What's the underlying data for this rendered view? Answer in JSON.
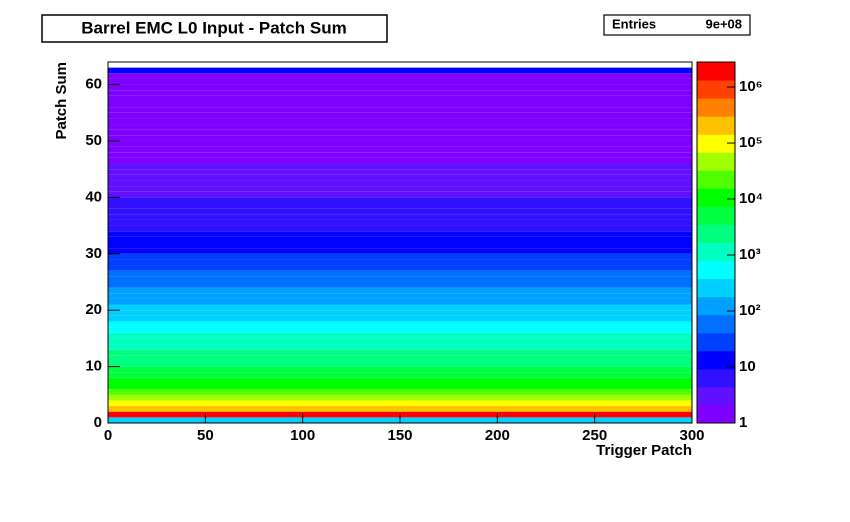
{
  "chart_data": {
    "type": "heatmap",
    "title": "Barrel EMC L0 Input - Patch Sum",
    "xlabel": "Trigger Patch",
    "ylabel": "Patch Sum",
    "stats": {
      "label": "Entries",
      "value": "9e+08"
    },
    "xlim": [
      0,
      300
    ],
    "xticks": [
      0,
      50,
      100,
      150,
      200,
      250,
      300
    ],
    "ylim": [
      0,
      64
    ],
    "yticks": [
      0,
      10,
      20,
      30,
      40,
      50,
      60
    ],
    "ybins": [
      0,
      1,
      2,
      3,
      4,
      5,
      6,
      7,
      8,
      9,
      10,
      11,
      12,
      13,
      14,
      15,
      16,
      17,
      18,
      19,
      20,
      21,
      22,
      23,
      24,
      25,
      26,
      27,
      28,
      29,
      30,
      31,
      32,
      33,
      34,
      35,
      36,
      37,
      38,
      39,
      40,
      41,
      42,
      43,
      44,
      45,
      46,
      47,
      48,
      49,
      50,
      51,
      52,
      53,
      54,
      55,
      56,
      57,
      58,
      59,
      60,
      61,
      62,
      63,
      64
    ],
    "values": [
      300,
      2000000,
      200000,
      100000,
      40000,
      25000,
      15000,
      10000,
      7000,
      5000,
      3500,
      2500,
      1800,
      1300,
      1000,
      800,
      600,
      450,
      350,
      280,
      220,
      170,
      130,
      100,
      80,
      60,
      45,
      35,
      28,
      22,
      18,
      15,
      12,
      10,
      9,
      8,
      7,
      6,
      5,
      4.5,
      4,
      3.5,
      3,
      2.8,
      2.5,
      2.2,
      2,
      1.8,
      1.6,
      1.5,
      1.4,
      1.3,
      1.2,
      1.2,
      1.1,
      1.1,
      1,
      1,
      1,
      1,
      1,
      1,
      10,
      null
    ],
    "zlog": true,
    "zlim": [
      1,
      2800000
    ],
    "zticks": [
      {
        "value": 1,
        "label": "1"
      },
      {
        "value": 10,
        "label": "10"
      },
      {
        "value": 100,
        "label": "10²"
      },
      {
        "value": 1000,
        "label": "10³"
      },
      {
        "value": 10000,
        "label": "10⁴"
      },
      {
        "value": 100000,
        "label": "10⁵"
      },
      {
        "value": 1000000,
        "label": "10⁶"
      }
    ],
    "palette": [
      "#8000ff",
      "#6010ff",
      "#3010ff",
      "#0000ff",
      "#0040ff",
      "#0070ff",
      "#00a0ff",
      "#00d0ff",
      "#00ffff",
      "#00ffc0",
      "#00ff80",
      "#00ff40",
      "#00ff00",
      "#50ff00",
      "#a0ff00",
      "#ffff00",
      "#ffc000",
      "#ff8000",
      "#ff4000",
      "#ff0000"
    ]
  }
}
